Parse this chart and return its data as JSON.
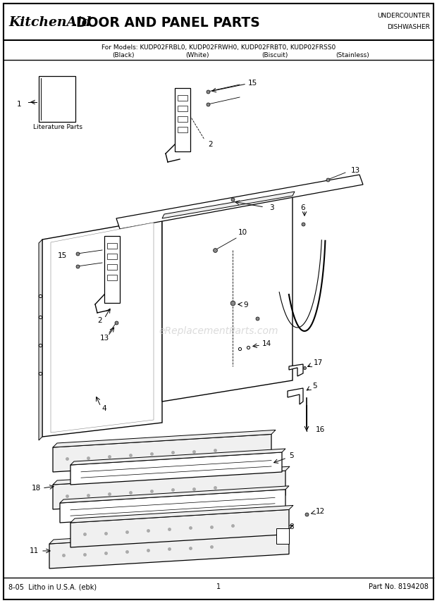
{
  "title_brand": "KitchenAid",
  "title_dot": ".",
  "title_main": " DOOR AND PANEL PARTS",
  "subtitle": "For Models: KUDP02FRBL0, KUDP02FRWH0, KUDP02FRBT0, KUDP02FRSS0",
  "sub_cols": [
    "(Black)",
    "(White)",
    "(Biscuit)",
    "(Stainless)"
  ],
  "top_right_line1": "UNDERCOUNTER",
  "top_right_line2": "DISHWASHER",
  "footer_left": "8-05  Litho in U.S.A. (ebk)",
  "footer_center": "1",
  "footer_right": "Part No. 8194208",
  "watermark": "eReplacementParts.com",
  "bg_color": "#ffffff"
}
